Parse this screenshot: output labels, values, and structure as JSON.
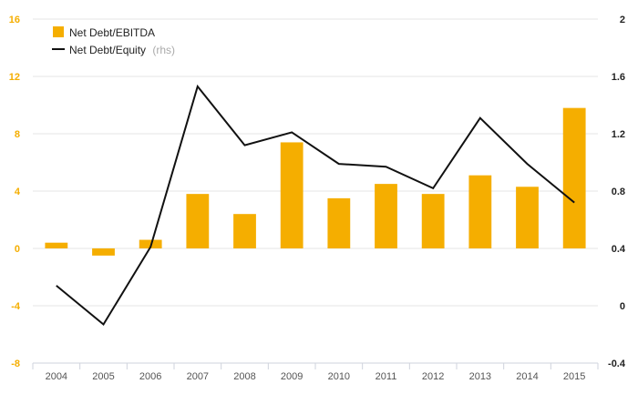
{
  "colors": {
    "bar": "#F5AE00",
    "line": "#111111",
    "left_axis_text": "#F5AE00",
    "right_axis_text": "#222222",
    "grid": "#e6e6e6",
    "axis": "#cfd3dc"
  },
  "chart_data": {
    "type": "bar",
    "categories": [
      "2004",
      "2005",
      "2006",
      "2007",
      "2008",
      "2009",
      "2010",
      "2011",
      "2012",
      "2013",
      "2014",
      "2015"
    ],
    "series": [
      {
        "name": "Net Debt/EBITDA",
        "type": "bar",
        "axis": "left",
        "values": [
          0.4,
          -0.5,
          0.6,
          3.8,
          2.4,
          7.4,
          3.5,
          4.5,
          3.8,
          5.1,
          4.3,
          9.8
        ]
      },
      {
        "name": "Net Debt/Equity",
        "suffix": "(rhs)",
        "type": "line",
        "axis": "right",
        "values": [
          0.14,
          -0.13,
          0.41,
          1.53,
          1.12,
          1.21,
          0.99,
          0.97,
          0.82,
          1.31,
          0.99,
          0.72
        ]
      }
    ],
    "left_axis": {
      "min": -8,
      "max": 16,
      "ticks": [
        "16",
        "12",
        "8",
        "4",
        "0",
        "-4",
        "-8"
      ]
    },
    "right_axis": {
      "min": -0.4,
      "max": 2,
      "ticks": [
        "2",
        "1.6",
        "1.2",
        "0.8",
        "0.4",
        "0",
        "-0.4"
      ]
    },
    "legend": {
      "position": "top-left",
      "items": [
        {
          "label": "Net Debt/EBITDA",
          "suffix": ""
        },
        {
          "label": "Net Debt/Equity",
          "suffix": "(rhs)"
        }
      ]
    },
    "grid": true
  }
}
